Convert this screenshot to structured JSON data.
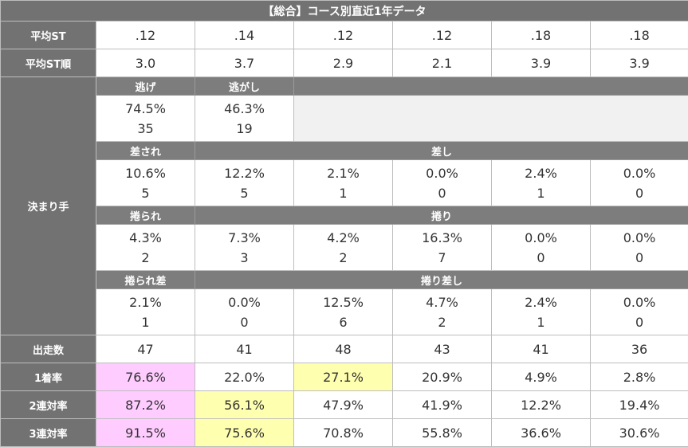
{
  "title": "【総合】コース別直近1年データ",
  "labels": {
    "avg_st": "平均ST",
    "avg_st_rank": "平均ST順",
    "kimarite": "決まり手",
    "starts": "出走数",
    "win_rate": "1着率",
    "top2_rate": "2連対率",
    "top3_rate": "3連対率"
  },
  "avg_st": [
    ".12",
    ".14",
    ".12",
    ".12",
    ".18",
    ".18"
  ],
  "avg_st_rank": [
    "3.0",
    "3.7",
    "2.9",
    "2.1",
    "3.9",
    "3.9"
  ],
  "kimarite": {
    "nige": {
      "label": "逃げ",
      "rate": "74.5%",
      "count": "35"
    },
    "nigashi": {
      "label": "逃がし",
      "rate": "46.3%",
      "count": "19"
    },
    "sasare": {
      "label": "差され"
    },
    "sashi": {
      "label": "差し"
    },
    "sashi_row": [
      {
        "rate": "10.6%",
        "count": "5"
      },
      {
        "rate": "12.2%",
        "count": "5"
      },
      {
        "rate": "2.1%",
        "count": "1"
      },
      {
        "rate": "0.0%",
        "count": "0"
      },
      {
        "rate": "2.4%",
        "count": "1"
      },
      {
        "rate": "0.0%",
        "count": "0"
      }
    ],
    "makurare": {
      "label": "捲られ"
    },
    "makuri": {
      "label": "捲り"
    },
    "makuri_row": [
      {
        "rate": "4.3%",
        "count": "2"
      },
      {
        "rate": "7.3%",
        "count": "3"
      },
      {
        "rate": "4.2%",
        "count": "2"
      },
      {
        "rate": "16.3%",
        "count": "7"
      },
      {
        "rate": "0.0%",
        "count": "0"
      },
      {
        "rate": "0.0%",
        "count": "0"
      }
    ],
    "makurare_sashi": {
      "label": "捲られ差"
    },
    "makuri_sashi": {
      "label": "捲り差し"
    },
    "makuri_sashi_row": [
      {
        "rate": "2.1%",
        "count": "1"
      },
      {
        "rate": "0.0%",
        "count": "0"
      },
      {
        "rate": "12.5%",
        "count": "6"
      },
      {
        "rate": "4.7%",
        "count": "2"
      },
      {
        "rate": "2.4%",
        "count": "1"
      },
      {
        "rate": "0.0%",
        "count": "0"
      }
    ]
  },
  "starts": [
    "47",
    "41",
    "48",
    "43",
    "41",
    "36"
  ],
  "win_rate": [
    "76.6%",
    "22.0%",
    "27.1%",
    "20.9%",
    "4.9%",
    "2.8%"
  ],
  "top2_rate": [
    "87.2%",
    "56.1%",
    "47.9%",
    "41.9%",
    "12.2%",
    "19.4%"
  ],
  "top3_rate": [
    "91.5%",
    "75.6%",
    "70.8%",
    "55.8%",
    "36.6%",
    "30.6%"
  ],
  "highlight_colors": {
    "first": "#ffccff",
    "second": "#ffffb0"
  }
}
